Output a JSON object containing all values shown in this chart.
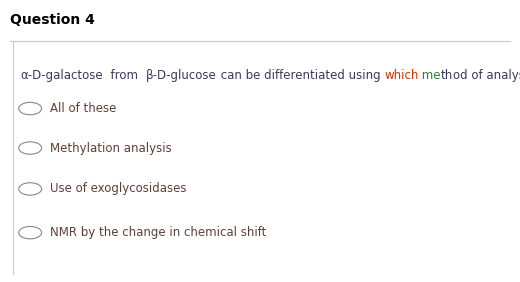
{
  "title": "Question 4",
  "title_fontsize": 10,
  "title_fontweight": "bold",
  "title_color": "#000000",
  "bg_color": "#ffffff",
  "border_color": "#c8c8c8",
  "question_segments": [
    {
      "text": "α-D-galactose",
      "color": "#3a3a5c"
    },
    {
      "text": "  from  ",
      "color": "#3a3a5c"
    },
    {
      "text": "β-D-glucose",
      "color": "#3a3a5c"
    },
    {
      "text": " can be differentiated using ",
      "color": "#3a3a5c"
    },
    {
      "text": "which",
      "color": "#cc3300"
    },
    {
      "text": " me",
      "color": "#2e7d32"
    },
    {
      "text": "th",
      "color": "#3a3a5c"
    },
    {
      "text": "od of analysis?",
      "color": "#3a3a5c"
    }
  ],
  "options": [
    "All of these",
    "Methylation analysis",
    "Use of exoglycosidases",
    "NMR by the change in chemical shift"
  ],
  "option_color": "#5d4037",
  "option_fontsize": 8.5,
  "question_fontsize": 8.5,
  "radio_color": "#888888"
}
